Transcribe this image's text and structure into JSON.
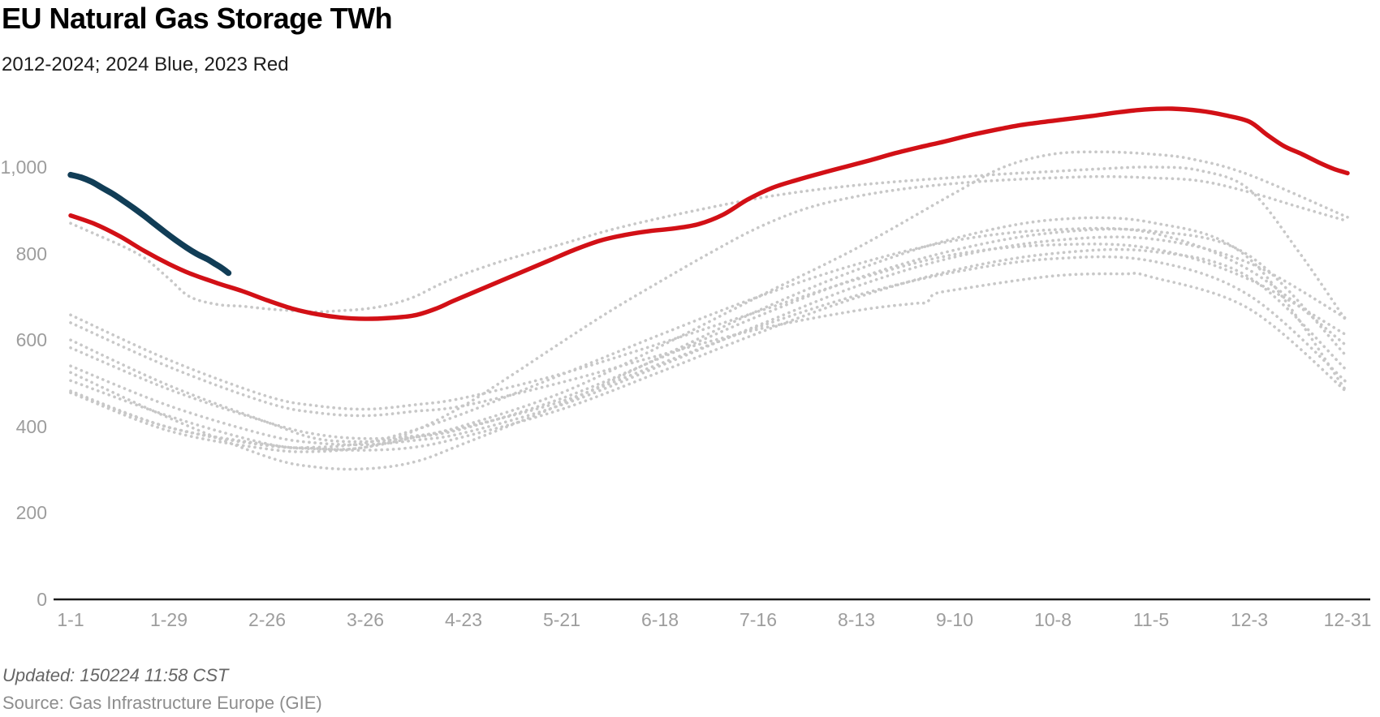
{
  "chart_data": {
    "type": "line",
    "title": "EU Natural Gas Storage TWh",
    "subtitle": "2012-2024; 2024 Blue, 2023 Red",
    "footer_updated": "Updated: 150224 11:58 CST",
    "footer_source": "Source: Gas Infrastructure Europe (GIE)",
    "x_unit": "day of year",
    "grid": false,
    "legend_position": "none (encoded in subtitle text)",
    "ylim": [
      0,
      1180
    ],
    "xlim_days": [
      0,
      364
    ],
    "colors": {
      "current_year": "#113d56",
      "previous_year": "#d21016",
      "history": "#c8c8c8",
      "axis_line": "#1a1a1a",
      "axis_text": "#9d9d9d"
    },
    "y_ticks": [
      {
        "value": 0,
        "label": "0"
      },
      {
        "value": 200,
        "label": "200"
      },
      {
        "value": 400,
        "label": "400"
      },
      {
        "value": 600,
        "label": "600"
      },
      {
        "value": 800,
        "label": "800"
      },
      {
        "value": 1000,
        "label": "1,000"
      }
    ],
    "x_ticks": [
      {
        "day": 0,
        "label": "1-1"
      },
      {
        "day": 28,
        "label": "1-29"
      },
      {
        "day": 56,
        "label": "2-26"
      },
      {
        "day": 84,
        "label": "3-26"
      },
      {
        "day": 112,
        "label": "4-23"
      },
      {
        "day": 140,
        "label": "5-21"
      },
      {
        "day": 168,
        "label": "6-18"
      },
      {
        "day": 196,
        "label": "7-16"
      },
      {
        "day": 224,
        "label": "8-13"
      },
      {
        "day": 252,
        "label": "9-10"
      },
      {
        "day": 280,
        "label": "10-8"
      },
      {
        "day": 308,
        "label": "11-5"
      },
      {
        "day": 336,
        "label": "12-3"
      },
      {
        "day": 364,
        "label": "12-31"
      }
    ],
    "series": [
      {
        "name": "2012",
        "role": "history",
        "line_style": "dotted",
        "points": [
          [
            0,
            582
          ],
          [
            28,
            486
          ],
          [
            56,
            410
          ],
          [
            70,
            382
          ],
          [
            84,
            372
          ],
          [
            98,
            378
          ],
          [
            112,
            398
          ],
          [
            140,
            458
          ],
          [
            168,
            545
          ],
          [
            196,
            630
          ],
          [
            224,
            703
          ],
          [
            252,
            757
          ],
          [
            280,
            788
          ],
          [
            308,
            783
          ],
          [
            336,
            703
          ],
          [
            364,
            500
          ]
        ]
      },
      {
        "name": "2013",
        "role": "history",
        "line_style": "dotted",
        "points": [
          [
            0,
            506
          ],
          [
            28,
            424
          ],
          [
            56,
            360
          ],
          [
            70,
            349
          ],
          [
            84,
            345
          ],
          [
            98,
            352
          ],
          [
            112,
            376
          ],
          [
            140,
            440
          ],
          [
            168,
            526
          ],
          [
            196,
            616
          ],
          [
            224,
            698
          ],
          [
            252,
            762
          ],
          [
            280,
            800
          ],
          [
            308,
            805
          ],
          [
            336,
            745
          ],
          [
            364,
            528
          ]
        ]
      },
      {
        "name": "2014",
        "role": "history",
        "line_style": "dotted",
        "points": [
          [
            0,
            482
          ],
          [
            28,
            398
          ],
          [
            56,
            356
          ],
          [
            70,
            352
          ],
          [
            84,
            362
          ],
          [
            98,
            392
          ],
          [
            112,
            430
          ],
          [
            140,
            520
          ],
          [
            168,
            612
          ],
          [
            196,
            700
          ],
          [
            224,
            775
          ],
          [
            252,
            830
          ],
          [
            280,
            855
          ],
          [
            308,
            848
          ],
          [
            336,
            762
          ],
          [
            364,
            585
          ]
        ]
      },
      {
        "name": "2015",
        "role": "history",
        "line_style": "dotted",
        "points": [
          [
            0,
            540
          ],
          [
            28,
            448
          ],
          [
            56,
            380
          ],
          [
            70,
            362
          ],
          [
            84,
            358
          ],
          [
            98,
            368
          ],
          [
            112,
            385
          ],
          [
            140,
            450
          ],
          [
            168,
            540
          ],
          [
            196,
            634
          ],
          [
            224,
            724
          ],
          [
            252,
            792
          ],
          [
            280,
            830
          ],
          [
            308,
            834
          ],
          [
            336,
            778
          ],
          [
            364,
            648
          ]
        ]
      },
      {
        "name": "2016",
        "role": "history",
        "line_style": "dotted",
        "points": [
          [
            0,
            658
          ],
          [
            28,
            554
          ],
          [
            56,
            470
          ],
          [
            70,
            448
          ],
          [
            84,
            440
          ],
          [
            98,
            450
          ],
          [
            112,
            466
          ],
          [
            140,
            522
          ],
          [
            168,
            592
          ],
          [
            196,
            666
          ],
          [
            224,
            740
          ],
          [
            252,
            798
          ],
          [
            280,
            820
          ],
          [
            308,
            812
          ],
          [
            336,
            740
          ],
          [
            364,
            610
          ]
        ]
      },
      {
        "name": "2017",
        "role": "history",
        "line_style": "dotted",
        "points": [
          [
            0,
            600
          ],
          [
            28,
            495
          ],
          [
            56,
            410
          ],
          [
            70,
            372
          ],
          [
            84,
            365
          ],
          [
            98,
            375
          ],
          [
            112,
            395
          ],
          [
            140,
            465
          ],
          [
            168,
            558
          ],
          [
            196,
            655
          ],
          [
            224,
            742
          ],
          [
            252,
            808
          ],
          [
            280,
            848
          ],
          [
            308,
            852
          ],
          [
            336,
            795
          ],
          [
            364,
            560
          ]
        ]
      },
      {
        "name": "2018",
        "role": "history",
        "line_style": "dotted",
        "points": [
          [
            0,
            525
          ],
          [
            28,
            420
          ],
          [
            56,
            330
          ],
          [
            70,
            306
          ],
          [
            84,
            302
          ],
          [
            98,
            318
          ],
          [
            112,
            360
          ],
          [
            140,
            452
          ],
          [
            168,
            560
          ],
          [
            196,
            668
          ],
          [
            224,
            762
          ],
          [
            252,
            835
          ],
          [
            280,
            878
          ],
          [
            308,
            872
          ],
          [
            336,
            788
          ],
          [
            364,
            478
          ]
        ]
      },
      {
        "name": "2019",
        "role": "history",
        "line_style": "dotted",
        "points": [
          [
            0,
            478
          ],
          [
            28,
            398
          ],
          [
            56,
            358
          ],
          [
            70,
            348
          ],
          [
            84,
            352
          ],
          [
            98,
            390
          ],
          [
            112,
            448
          ],
          [
            126,
            520
          ],
          [
            140,
            595
          ],
          [
            154,
            668
          ],
          [
            168,
            735
          ],
          [
            182,
            800
          ],
          [
            196,
            860
          ],
          [
            210,
            905
          ],
          [
            224,
            932
          ],
          [
            238,
            950
          ],
          [
            252,
            962
          ],
          [
            266,
            970
          ],
          [
            280,
            975
          ],
          [
            294,
            978
          ],
          [
            308,
            975
          ],
          [
            322,
            968
          ],
          [
            336,
            942
          ],
          [
            350,
            908
          ],
          [
            364,
            875
          ]
        ]
      },
      {
        "name": "2020",
        "role": "history",
        "line_style": "dotted",
        "points": [
          [
            0,
            870
          ],
          [
            7,
            845
          ],
          [
            14,
            820
          ],
          [
            21,
            790
          ],
          [
            28,
            742
          ],
          [
            34,
            700
          ],
          [
            42,
            682
          ],
          [
            49,
            678
          ],
          [
            56,
            672
          ],
          [
            63,
            668
          ],
          [
            70,
            665
          ],
          [
            77,
            668
          ],
          [
            84,
            672
          ],
          [
            91,
            682
          ],
          [
            98,
            700
          ],
          [
            105,
            728
          ],
          [
            112,
            752
          ],
          [
            119,
            772
          ],
          [
            126,
            790
          ],
          [
            140,
            822
          ],
          [
            154,
            855
          ],
          [
            168,
            882
          ],
          [
            182,
            906
          ],
          [
            196,
            928
          ],
          [
            210,
            945
          ],
          [
            224,
            958
          ],
          [
            238,
            968
          ],
          [
            252,
            976
          ],
          [
            266,
            984
          ],
          [
            280,
            990
          ],
          [
            294,
            996
          ],
          [
            308,
            1000
          ],
          [
            322,
            992
          ],
          [
            336,
            948
          ],
          [
            350,
            805
          ],
          [
            364,
            640
          ]
        ]
      },
      {
        "name": "2021",
        "role": "history",
        "line_style": "dotted",
        "points": [
          [
            0,
            640
          ],
          [
            28,
            538
          ],
          [
            56,
            455
          ],
          [
            70,
            432
          ],
          [
            84,
            425
          ],
          [
            98,
            435
          ],
          [
            112,
            448
          ],
          [
            140,
            502
          ],
          [
            168,
            565
          ],
          [
            196,
            625
          ],
          [
            224,
            668
          ],
          [
            240,
            684
          ],
          [
            244,
            687
          ],
          [
            246,
            705
          ],
          [
            252,
            716
          ],
          [
            280,
            748
          ],
          [
            300,
            753
          ],
          [
            308,
            746
          ],
          [
            336,
            672
          ],
          [
            364,
            478
          ]
        ]
      },
      {
        "name": "2022",
        "role": "history",
        "line_style": "dotted",
        "points": [
          [
            0,
            478
          ],
          [
            28,
            390
          ],
          [
            56,
            348
          ],
          [
            70,
            342
          ],
          [
            84,
            352
          ],
          [
            98,
            375
          ],
          [
            112,
            402
          ],
          [
            140,
            478
          ],
          [
            168,
            585
          ],
          [
            196,
            700
          ],
          [
            224,
            812
          ],
          [
            252,
            940
          ],
          [
            266,
            1000
          ],
          [
            280,
            1030
          ],
          [
            294,
            1035
          ],
          [
            308,
            1030
          ],
          [
            320,
            1018
          ],
          [
            336,
            982
          ],
          [
            364,
            884
          ]
        ]
      },
      {
        "name": "2023",
        "role": "previous_year",
        "line_style": "solid",
        "points": [
          [
            0,
            888
          ],
          [
            7,
            868
          ],
          [
            14,
            840
          ],
          [
            21,
            806
          ],
          [
            28,
            776
          ],
          [
            34,
            754
          ],
          [
            42,
            731
          ],
          [
            49,
            713
          ],
          [
            56,
            692
          ],
          [
            63,
            673
          ],
          [
            70,
            660
          ],
          [
            77,
            652
          ],
          [
            84,
            649
          ],
          [
            91,
            651
          ],
          [
            98,
            657
          ],
          [
            104,
            672
          ],
          [
            109,
            690
          ],
          [
            116,
            714
          ],
          [
            123,
            738
          ],
          [
            130,
            762
          ],
          [
            137,
            786
          ],
          [
            144,
            810
          ],
          [
            151,
            830
          ],
          [
            158,
            843
          ],
          [
            165,
            852
          ],
          [
            172,
            858
          ],
          [
            179,
            868
          ],
          [
            186,
            890
          ],
          [
            193,
            925
          ],
          [
            200,
            952
          ],
          [
            207,
            970
          ],
          [
            214,
            986
          ],
          [
            221,
            1001
          ],
          [
            228,
            1016
          ],
          [
            235,
            1032
          ],
          [
            242,
            1046
          ],
          [
            249,
            1059
          ],
          [
            256,
            1073
          ],
          [
            263,
            1085
          ],
          [
            270,
            1096
          ],
          [
            277,
            1104
          ],
          [
            284,
            1111
          ],
          [
            291,
            1118
          ],
          [
            298,
            1126
          ],
          [
            306,
            1133
          ],
          [
            314,
            1135
          ],
          [
            322,
            1130
          ],
          [
            329,
            1120
          ],
          [
            336,
            1105
          ],
          [
            341,
            1075
          ],
          [
            346,
            1048
          ],
          [
            351,
            1030
          ],
          [
            356,
            1010
          ],
          [
            360,
            996
          ],
          [
            364,
            986
          ]
        ]
      },
      {
        "name": "2024",
        "role": "current_year",
        "line_style": "solid",
        "points": [
          [
            0,
            982
          ],
          [
            3,
            976
          ],
          [
            6,
            966
          ],
          [
            9,
            952
          ],
          [
            12,
            938
          ],
          [
            15,
            922
          ],
          [
            18,
            905
          ],
          [
            21,
            887
          ],
          [
            24,
            868
          ],
          [
            27,
            849
          ],
          [
            30,
            831
          ],
          [
            33,
            814
          ],
          [
            36,
            799
          ],
          [
            39,
            787
          ],
          [
            41,
            777
          ],
          [
            43,
            767
          ],
          [
            45,
            755
          ]
        ]
      }
    ]
  }
}
